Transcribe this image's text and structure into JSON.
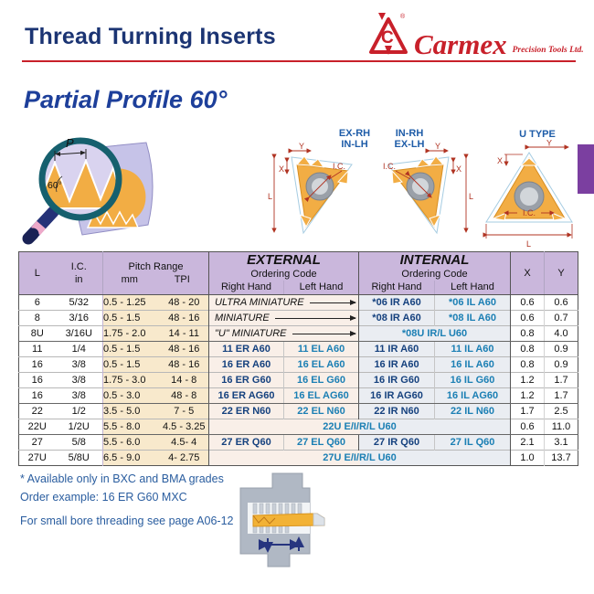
{
  "page": {
    "title": "Thread Turning Inserts",
    "section_title": "Partial Profile 60°",
    "brand": {
      "name": "Carmex",
      "tagline": "Precision Tools Ltd."
    }
  },
  "colors": {
    "brand_red": "#c8202a",
    "navy_code": "#15417e",
    "teal_code": "#1b7fb4",
    "header_bg": "#cab7dc",
    "pitch_bg": "#f8e9cc",
    "external_bg": "#f9efe8",
    "internal_bg": "#eaedf2",
    "tab_purple": "#7b3fa0"
  },
  "diagrams": {
    "magnifier": {
      "p": "P",
      "angle": "60°"
    },
    "captions": {
      "c1a": "EX-RH",
      "c1b": "IN-LH",
      "c2a": "IN-RH",
      "c2b": "EX-LH",
      "utype": "U TYPE"
    },
    "dims": {
      "l": "L",
      "x": "X",
      "y": "Y",
      "ic": "I.C."
    }
  },
  "table": {
    "headers": {
      "l": "L",
      "ic": "I.C.",
      "ic_unit": "in",
      "pitch": "Pitch Range",
      "mm": "mm",
      "tpi": "TPI",
      "external": "EXTERNAL",
      "internal": "INTERNAL",
      "ordering": "Ordering Code",
      "rh": "Right Hand",
      "lh": "Left Hand",
      "x": "X",
      "y": "Y"
    },
    "rows": [
      {
        "l": "6",
        "ic": "5/32",
        "mm": "0.5 - 1.25",
        "tpi": "48 - 20",
        "ext_label": "ULTRA MINIATURE",
        "int_rh": "*06 IR A60",
        "int_lh": "*06 IL A60",
        "x": "0.6",
        "y": "0.6"
      },
      {
        "l": "8",
        "ic": "3/16",
        "mm": "0.5 - 1.5",
        "tpi": "48 - 16",
        "ext_label": "MINIATURE",
        "int_rh": "*08 IR A60",
        "int_lh": "*08 IL A60",
        "x": "0.6",
        "y": "0.7"
      },
      {
        "l": "8U",
        "ic": "3/16U",
        "mm": "1.75 - 2.0",
        "tpi": "14 - 11",
        "ext_label": "\"U\" MINIATURE",
        "int_span": "*08U IR/L U60",
        "x": "0.8",
        "y": "4.0",
        "group_end": true
      },
      {
        "l": "11",
        "ic": "1/4",
        "mm": "0.5 - 1.5",
        "tpi": "48 - 16",
        "ext_rh": "11 ER A60",
        "ext_lh": "11 EL A60",
        "int_rh": "11 IR A60",
        "int_lh": "11 IL A60",
        "x": "0.8",
        "y": "0.9"
      },
      {
        "l": "16",
        "ic": "3/8",
        "mm": "0.5 - 1.5",
        "tpi": "48 - 16",
        "ext_rh": "16 ER A60",
        "ext_lh": "16 EL A60",
        "int_rh": "16 IR A60",
        "int_lh": "16 IL A60",
        "x": "0.8",
        "y": "0.9"
      },
      {
        "l": "16",
        "ic": "3/8",
        "mm": "1.75 - 3.0",
        "tpi": "14 - 8",
        "ext_rh": "16 ER G60",
        "ext_lh": "16 EL G60",
        "int_rh": "16 IR G60",
        "int_lh": "16 IL G60",
        "x": "1.2",
        "y": "1.7"
      },
      {
        "l": "16",
        "ic": "3/8",
        "mm": "0.5 - 3.0",
        "tpi": "48 - 8",
        "ext_rh": "16 ER AG60",
        "ext_lh": "16 EL AG60",
        "int_rh": "16 IR AG60",
        "int_lh": "16 IL AG60",
        "x": "1.2",
        "y": "1.7",
        "group_end": true
      },
      {
        "l": "22",
        "ic": "1/2",
        "mm": "3.5 - 5.0",
        "tpi": "7 - 5",
        "ext_rh": "22 ER N60",
        "ext_lh": "22 EL N60",
        "int_rh": "22 IR N60",
        "int_lh": "22 IL N60",
        "x": "1.7",
        "y": "2.5"
      },
      {
        "l": "22U",
        "ic": "1/2U",
        "mm": "5.5 - 8.0",
        "tpi": "4.5 - 3.25",
        "span_all": "22U E/I/R/L U60",
        "x": "0.6",
        "y": "11.0",
        "group_end": true
      },
      {
        "l": "27",
        "ic": "5/8",
        "mm": "5.5 - 6.0",
        "tpi": "4.5- 4",
        "ext_rh": "27 ER Q60",
        "ext_lh": "27 EL Q60",
        "int_rh": "27 IR Q60",
        "int_lh": "27 IL Q60",
        "x": "2.1",
        "y": "3.1"
      },
      {
        "l": "27U",
        "ic": "5/8U",
        "mm": "6.5 - 9.0",
        "tpi": "4- 2.75",
        "span_all": "27U E/I/R/L U60",
        "x": "1.0",
        "y": "13.7"
      }
    ]
  },
  "footer": {
    "note1": "* Available only in BXC and BMA grades",
    "note2": "Order example: 16 ER G60 MXC",
    "note3": "For small bore threading see page A06-12"
  }
}
